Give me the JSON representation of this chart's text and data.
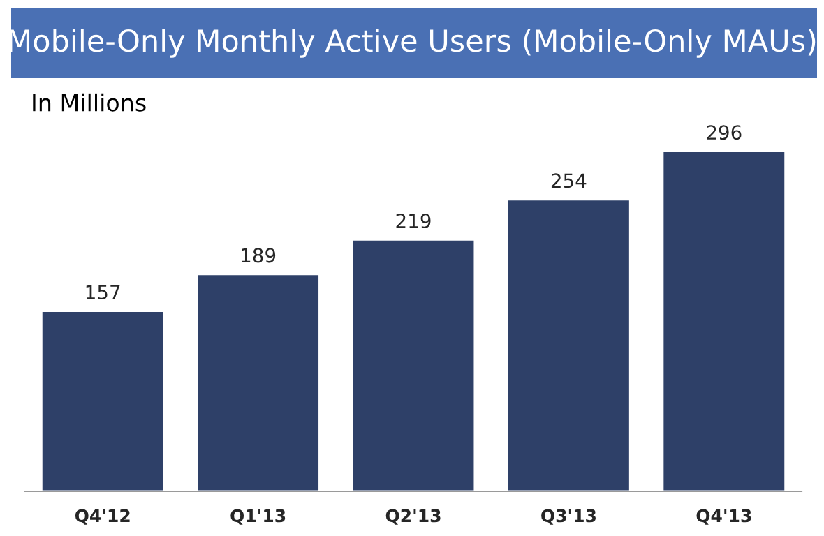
{
  "chart_data": {
    "type": "bar",
    "title": "Mobile-Only Monthly Active Users (Mobile-Only MAUs)",
    "subtitle": "In Millions",
    "categories": [
      "Q4'12",
      "Q1'13",
      "Q2'13",
      "Q3'13",
      "Q4'13"
    ],
    "values": [
      157,
      189,
      219,
      254,
      296
    ],
    "color": "#2e4068",
    "data_labels": true,
    "grid": false,
    "legend": false
  }
}
